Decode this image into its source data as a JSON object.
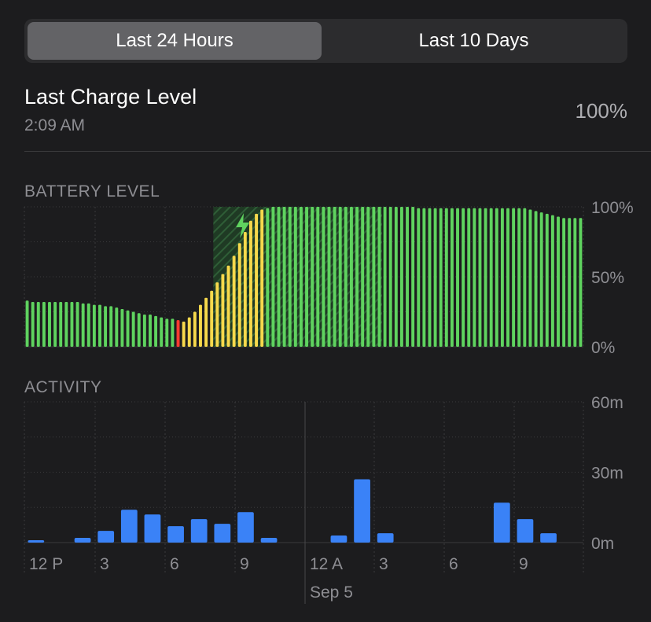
{
  "segmented_control": {
    "options": [
      {
        "label": "Last 24 Hours",
        "selected": true
      },
      {
        "label": "Last 10 Days",
        "selected": false
      }
    ]
  },
  "last_charge": {
    "title": "Last Charge Level",
    "time": "2:09 AM",
    "value": "100%"
  },
  "colors": {
    "background": "#1c1c1e",
    "green": "#5fd35f",
    "yellow": "#f7d94c",
    "red": "#ff3b30",
    "blue": "#3a82f7",
    "grid": "#3a3a3c"
  },
  "battery_section": {
    "label": "BATTERY LEVEL",
    "y_ticks": [
      "100%",
      "50%",
      "0%"
    ]
  },
  "activity_section": {
    "label": "ACTIVITY",
    "y_ticks": [
      "60m",
      "30m",
      "0m"
    ],
    "x_ticks": [
      "12 P",
      "3",
      "6",
      "9",
      "12 A",
      "3",
      "6",
      "9"
    ],
    "date_label": "Sep 5"
  },
  "chart_data": [
    {
      "type": "bar",
      "name_hint": "battery-level",
      "unit": "%",
      "ylim": [
        0,
        100
      ],
      "charging_icon": "lightning-bolt-icon",
      "values": [
        33,
        32,
        32,
        32,
        32,
        32,
        32,
        32,
        32,
        32,
        31,
        31,
        30,
        30,
        29,
        29,
        28,
        27,
        26,
        25,
        24,
        23,
        23,
        22,
        21,
        20,
        20,
        19,
        18,
        21,
        25,
        30,
        35,
        40,
        46,
        52,
        58,
        65,
        74,
        82,
        90,
        95,
        98,
        99,
        100,
        100,
        100,
        100,
        100,
        100,
        100,
        100,
        100,
        100,
        100,
        100,
        100,
        100,
        100,
        100,
        100,
        100,
        100,
        100,
        100,
        100,
        100,
        100,
        100,
        100,
        99,
        99,
        99,
        99,
        99,
        99,
        99,
        99,
        99,
        99,
        99,
        99,
        99,
        99,
        99,
        99,
        99,
        99,
        99,
        99,
        98,
        97,
        96,
        95,
        94,
        93,
        92,
        92,
        92,
        92
      ],
      "colors_by_index": {
        "red": [
          27
        ],
        "yellow": [
          28,
          29,
          30,
          31,
          32,
          33,
          34,
          35,
          36,
          37,
          38,
          39,
          40,
          41,
          42
        ]
      },
      "charging_ranges": [
        [
          34,
          36
        ],
        [
          37,
          63
        ]
      ]
    },
    {
      "type": "bar",
      "name_hint": "activity",
      "unit": "minutes",
      "ylim": [
        0,
        60
      ],
      "values": [
        1,
        0,
        2,
        5,
        14,
        12,
        7,
        10,
        8,
        13,
        2,
        0,
        0,
        3,
        27,
        4,
        0,
        0,
        0,
        0,
        17,
        10,
        4,
        0
      ]
    }
  ]
}
